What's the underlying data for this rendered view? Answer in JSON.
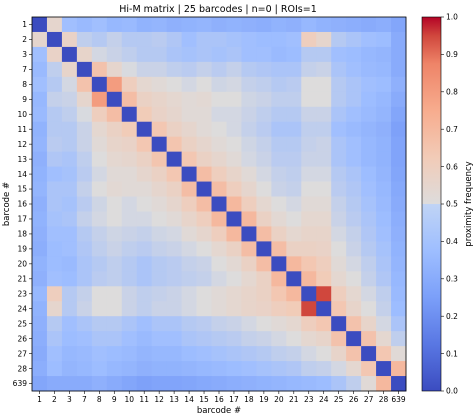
{
  "chart_data": {
    "type": "heatmap",
    "title": "Hi-M matrix | 25 barcodes | n=0 | ROIs=1",
    "xlabel": "barcode #",
    "ylabel": "barcode #",
    "categories": [
      "1",
      "2",
      "3",
      "7",
      "8",
      "9",
      "10",
      "11",
      "12",
      "13",
      "14",
      "15",
      "16",
      "17",
      "18",
      "19",
      "20",
      "21",
      "23",
      "24",
      "25",
      "26",
      "27",
      "28",
      "639"
    ],
    "colormap": "coolwarm",
    "colorbar": {
      "label": "proximity frequency",
      "range": [
        0.0,
        1.0
      ],
      "ticks": [
        "0.0",
        "0.1",
        "0.2",
        "0.3",
        "0.4",
        "0.5",
        "0.6",
        "0.7",
        "0.8",
        "0.9",
        "1.0"
      ]
    },
    "values": [
      [
        0.0,
        0.55,
        0.38,
        0.36,
        0.38,
        0.35,
        0.36,
        0.33,
        0.34,
        0.32,
        0.33,
        0.34,
        0.32,
        0.33,
        0.32,
        0.31,
        0.33,
        0.32,
        0.35,
        0.33,
        0.32,
        0.31,
        0.3,
        0.31,
        0.28
      ],
      [
        0.55,
        0.0,
        0.57,
        0.44,
        0.42,
        0.45,
        0.42,
        0.42,
        0.43,
        0.41,
        0.38,
        0.4,
        0.4,
        0.39,
        0.38,
        0.37,
        0.37,
        0.38,
        0.6,
        0.55,
        0.42,
        0.4,
        0.38,
        0.37,
        0.3
      ],
      [
        0.38,
        0.57,
        0.0,
        0.56,
        0.48,
        0.46,
        0.44,
        0.42,
        0.42,
        0.4,
        0.39,
        0.4,
        0.39,
        0.4,
        0.38,
        0.38,
        0.36,
        0.37,
        0.42,
        0.42,
        0.38,
        0.37,
        0.35,
        0.34,
        0.3
      ],
      [
        0.36,
        0.44,
        0.56,
        0.0,
        0.66,
        0.55,
        0.49,
        0.46,
        0.46,
        0.44,
        0.43,
        0.45,
        0.43,
        0.45,
        0.42,
        0.41,
        0.4,
        0.4,
        0.45,
        0.46,
        0.4,
        0.38,
        0.36,
        0.35,
        0.3
      ],
      [
        0.38,
        0.42,
        0.48,
        0.66,
        0.0,
        0.8,
        0.6,
        0.54,
        0.52,
        0.5,
        0.48,
        0.5,
        0.47,
        0.48,
        0.45,
        0.44,
        0.42,
        0.43,
        0.5,
        0.5,
        0.42,
        0.4,
        0.38,
        0.37,
        0.32
      ],
      [
        0.35,
        0.45,
        0.46,
        0.55,
        0.8,
        0.0,
        0.68,
        0.58,
        0.56,
        0.54,
        0.52,
        0.53,
        0.5,
        0.5,
        0.47,
        0.46,
        0.44,
        0.44,
        0.5,
        0.5,
        0.42,
        0.4,
        0.37,
        0.35,
        0.3
      ],
      [
        0.36,
        0.42,
        0.44,
        0.49,
        0.6,
        0.68,
        0.0,
        0.62,
        0.57,
        0.55,
        0.52,
        0.52,
        0.48,
        0.48,
        0.46,
        0.44,
        0.42,
        0.42,
        0.46,
        0.46,
        0.4,
        0.38,
        0.36,
        0.34,
        0.28
      ],
      [
        0.33,
        0.42,
        0.42,
        0.46,
        0.54,
        0.58,
        0.62,
        0.0,
        0.64,
        0.58,
        0.55,
        0.52,
        0.5,
        0.48,
        0.45,
        0.43,
        0.4,
        0.4,
        0.44,
        0.44,
        0.38,
        0.36,
        0.34,
        0.32,
        0.26
      ],
      [
        0.34,
        0.43,
        0.42,
        0.46,
        0.52,
        0.56,
        0.57,
        0.64,
        0.0,
        0.65,
        0.58,
        0.55,
        0.52,
        0.5,
        0.47,
        0.45,
        0.42,
        0.42,
        0.45,
        0.46,
        0.4,
        0.38,
        0.35,
        0.33,
        0.27
      ],
      [
        0.32,
        0.41,
        0.4,
        0.44,
        0.5,
        0.54,
        0.55,
        0.58,
        0.65,
        0.0,
        0.64,
        0.58,
        0.55,
        0.52,
        0.48,
        0.46,
        0.43,
        0.43,
        0.46,
        0.46,
        0.4,
        0.38,
        0.35,
        0.33,
        0.27
      ],
      [
        0.33,
        0.38,
        0.39,
        0.43,
        0.48,
        0.52,
        0.52,
        0.55,
        0.58,
        0.64,
        0.0,
        0.68,
        0.6,
        0.56,
        0.52,
        0.48,
        0.45,
        0.44,
        0.48,
        0.48,
        0.42,
        0.4,
        0.37,
        0.34,
        0.28
      ],
      [
        0.34,
        0.4,
        0.4,
        0.45,
        0.5,
        0.53,
        0.52,
        0.52,
        0.55,
        0.58,
        0.68,
        0.0,
        0.68,
        0.6,
        0.55,
        0.5,
        0.46,
        0.45,
        0.5,
        0.5,
        0.43,
        0.41,
        0.38,
        0.35,
        0.29
      ],
      [
        0.32,
        0.4,
        0.39,
        0.43,
        0.47,
        0.5,
        0.48,
        0.5,
        0.52,
        0.55,
        0.6,
        0.68,
        0.0,
        0.7,
        0.6,
        0.54,
        0.5,
        0.48,
        0.52,
        0.52,
        0.45,
        0.42,
        0.39,
        0.36,
        0.3
      ],
      [
        0.33,
        0.39,
        0.4,
        0.45,
        0.48,
        0.5,
        0.48,
        0.48,
        0.5,
        0.52,
        0.56,
        0.6,
        0.7,
        0.0,
        0.7,
        0.58,
        0.53,
        0.5,
        0.54,
        0.54,
        0.46,
        0.43,
        0.4,
        0.37,
        0.31
      ],
      [
        0.32,
        0.38,
        0.38,
        0.42,
        0.45,
        0.47,
        0.46,
        0.45,
        0.47,
        0.48,
        0.52,
        0.55,
        0.6,
        0.7,
        0.0,
        0.68,
        0.58,
        0.54,
        0.56,
        0.56,
        0.48,
        0.45,
        0.41,
        0.38,
        0.32
      ],
      [
        0.31,
        0.37,
        0.38,
        0.41,
        0.44,
        0.46,
        0.44,
        0.43,
        0.45,
        0.46,
        0.48,
        0.5,
        0.54,
        0.58,
        0.68,
        0.0,
        0.68,
        0.58,
        0.58,
        0.57,
        0.5,
        0.46,
        0.42,
        0.39,
        0.33
      ],
      [
        0.33,
        0.37,
        0.36,
        0.4,
        0.42,
        0.44,
        0.42,
        0.4,
        0.42,
        0.43,
        0.45,
        0.46,
        0.5,
        0.53,
        0.58,
        0.68,
        0.0,
        0.7,
        0.64,
        0.6,
        0.52,
        0.48,
        0.44,
        0.4,
        0.34
      ],
      [
        0.32,
        0.38,
        0.37,
        0.4,
        0.43,
        0.44,
        0.42,
        0.4,
        0.42,
        0.43,
        0.44,
        0.45,
        0.48,
        0.5,
        0.54,
        0.58,
        0.7,
        0.0,
        0.7,
        0.62,
        0.54,
        0.5,
        0.45,
        0.41,
        0.35
      ],
      [
        0.35,
        0.6,
        0.42,
        0.45,
        0.5,
        0.5,
        0.46,
        0.44,
        0.45,
        0.46,
        0.48,
        0.5,
        0.52,
        0.54,
        0.56,
        0.58,
        0.64,
        0.7,
        0.0,
        0.95,
        0.6,
        0.54,
        0.48,
        0.44,
        0.36
      ],
      [
        0.33,
        0.55,
        0.42,
        0.46,
        0.5,
        0.5,
        0.46,
        0.44,
        0.46,
        0.46,
        0.48,
        0.5,
        0.52,
        0.54,
        0.56,
        0.57,
        0.6,
        0.62,
        0.95,
        0.0,
        0.64,
        0.56,
        0.5,
        0.45,
        0.37
      ],
      [
        0.32,
        0.42,
        0.38,
        0.4,
        0.42,
        0.42,
        0.4,
        0.38,
        0.4,
        0.4,
        0.42,
        0.43,
        0.45,
        0.46,
        0.48,
        0.5,
        0.52,
        0.54,
        0.6,
        0.64,
        0.0,
        0.66,
        0.56,
        0.48,
        0.4
      ],
      [
        0.31,
        0.4,
        0.37,
        0.38,
        0.4,
        0.4,
        0.38,
        0.36,
        0.38,
        0.38,
        0.4,
        0.41,
        0.42,
        0.43,
        0.45,
        0.46,
        0.48,
        0.5,
        0.54,
        0.56,
        0.66,
        0.0,
        0.66,
        0.54,
        0.44
      ],
      [
        0.3,
        0.38,
        0.35,
        0.36,
        0.38,
        0.37,
        0.36,
        0.34,
        0.35,
        0.35,
        0.37,
        0.38,
        0.39,
        0.4,
        0.41,
        0.42,
        0.44,
        0.45,
        0.48,
        0.5,
        0.56,
        0.66,
        0.0,
        0.64,
        0.52
      ],
      [
        0.31,
        0.37,
        0.34,
        0.35,
        0.37,
        0.35,
        0.34,
        0.32,
        0.33,
        0.33,
        0.34,
        0.35,
        0.36,
        0.37,
        0.38,
        0.39,
        0.4,
        0.41,
        0.44,
        0.45,
        0.48,
        0.54,
        0.64,
        0.0,
        0.7
      ],
      [
        0.28,
        0.3,
        0.3,
        0.3,
        0.32,
        0.3,
        0.28,
        0.26,
        0.27,
        0.27,
        0.28,
        0.29,
        0.3,
        0.31,
        0.32,
        0.33,
        0.34,
        0.35,
        0.36,
        0.37,
        0.4,
        0.44,
        0.52,
        0.7,
        0.0
      ]
    ]
  }
}
